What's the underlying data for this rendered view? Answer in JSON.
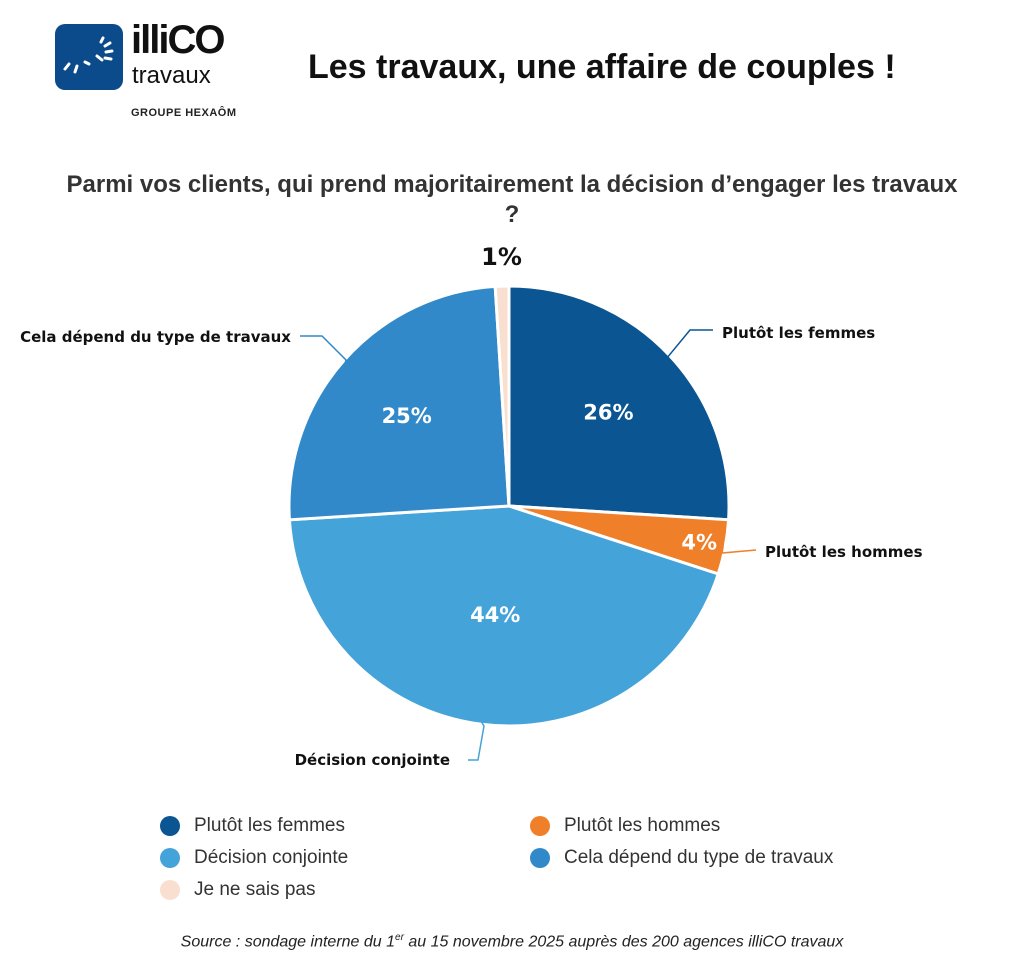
{
  "brand": {
    "name": "illiCO",
    "sub": "travaux",
    "group": "GROUPE HEXAÔM",
    "logo_color": "#0b4a8b"
  },
  "headline": "Les travaux, une affaire de couples !",
  "chart_data": {
    "type": "pie",
    "title": "Parmi vos clients, qui prend majoritairement la décision d’engager les travaux ?",
    "slices": [
      {
        "label": "Plutôt les femmes",
        "value": 26,
        "value_label": "26%",
        "color": "#0a5592"
      },
      {
        "label": "Plutôt les hommes",
        "value": 4,
        "value_label": "4%",
        "color": "#f07f2a"
      },
      {
        "label": "Décision conjointe",
        "value": 44,
        "value_label": "44%",
        "color": "#44a3d8"
      },
      {
        "label": "Cela dépend du type de travaux",
        "value": 25,
        "value_label": "25%",
        "color": "#3189c9"
      },
      {
        "label": "Je ne sais pas",
        "value": 1,
        "value_label": "1%",
        "color": "#f9dfd0"
      }
    ],
    "legend_position": "bottom"
  },
  "legend": [
    {
      "label": "Plutôt les femmes",
      "color": "#0a5592"
    },
    {
      "label": "Plutôt les hommes",
      "color": "#f07f2a"
    },
    {
      "label": "Décision conjointe",
      "color": "#44a3d8"
    },
    {
      "label": "Cela dépend du type de travaux",
      "color": "#3189c9"
    },
    {
      "label": "Je ne sais pas",
      "color": "#f9dfd0"
    }
  ],
  "source": {
    "before": "Source : sondage interne du 1",
    "sup": "er",
    "after": " au 15 novembre 2025 auprès des 200 agences illiCO travaux"
  }
}
